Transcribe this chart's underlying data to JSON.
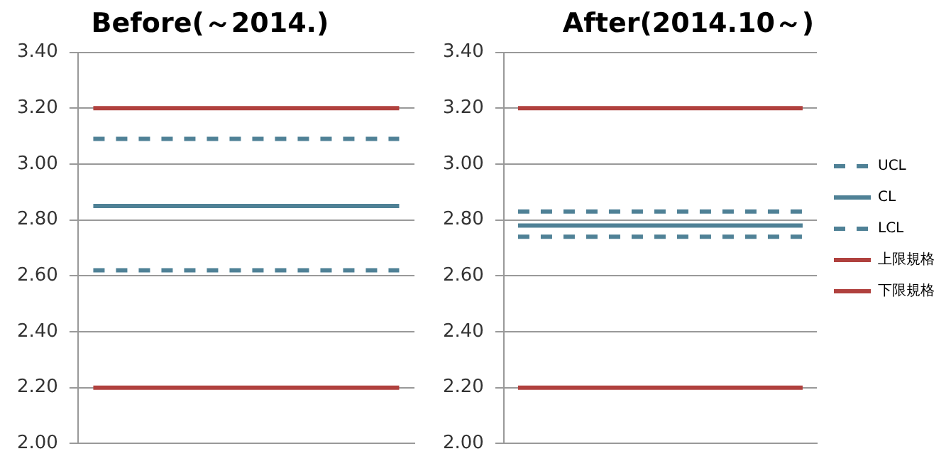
{
  "chart_data": [
    {
      "type": "line",
      "title": "Before(～2014.)",
      "categories": [
        null,
        null,
        null,
        null,
        null,
        null,
        null,
        null,
        null,
        null,
        null
      ],
      "series": [
        {
          "color": "#4f8196",
          "line_style": "dashed",
          "values": [
            3.09,
            3.09,
            3.09,
            3.09,
            3.09,
            3.09,
            3.09,
            3.09,
            3.09,
            3.09,
            3.09
          ]
        },
        {
          "color": "#4f8196",
          "line_style": "solid",
          "values": [
            2.85,
            2.85,
            2.85,
            2.85,
            2.85,
            2.85,
            2.85,
            2.85,
            2.85,
            2.85,
            2.85
          ]
        },
        {
          "color": "#4f8196",
          "line_style": "dashed",
          "values": [
            2.62,
            2.62,
            2.62,
            2.62,
            2.62,
            2.62,
            2.62,
            2.62,
            2.62,
            2.62,
            2.62
          ]
        },
        {
          "color": "#b0413e",
          "line_style": "solid",
          "values": [
            3.2,
            3.2,
            3.2,
            3.2,
            3.2,
            3.2,
            3.2,
            3.2,
            3.2,
            3.2,
            3.2
          ]
        },
        {
          "color": "#b0413e",
          "line_style": "solid",
          "values": [
            2.2,
            2.2,
            2.2,
            2.2,
            2.2,
            2.2,
            2.2,
            2.2,
            2.2,
            2.2,
            2.2
          ]
        }
      ],
      "ylim": [
        2.0,
        3.4
      ],
      "yticks": [
        {
          "value": 2.0,
          "label": "2.00"
        },
        {
          "value": 2.2,
          "label": "2.20"
        },
        {
          "value": 2.4,
          "label": "2.40"
        },
        {
          "value": 2.6,
          "label": "2.60"
        },
        {
          "value": 2.8,
          "label": "2.80"
        },
        {
          "value": 3.0,
          "label": "3.00"
        },
        {
          "value": 3.2,
          "label": "3.20"
        },
        {
          "value": 3.4,
          "label": "3.40"
        }
      ],
      "grid": "y",
      "legend": false,
      "marker": "none",
      "tick_labels": "y"
    },
    {
      "type": "line",
      "title": "After(2014.10～)",
      "categories": [
        null,
        null,
        null,
        null,
        null,
        null,
        null,
        null,
        null,
        null,
        null
      ],
      "series": [
        {
          "name": "UCL",
          "color": "#4f8196",
          "line_style": "dashed",
          "values": [
            2.83,
            2.83,
            2.83,
            2.83,
            2.83,
            2.83,
            2.83,
            2.83,
            2.83,
            2.83,
            2.83
          ]
        },
        {
          "name": "CL",
          "color": "#4f8196",
          "line_style": "solid",
          "values": [
            2.78,
            2.78,
            2.78,
            2.78,
            2.78,
            2.78,
            2.78,
            2.78,
            2.78,
            2.78,
            2.78
          ]
        },
        {
          "name": "LCL",
          "color": "#4f8196",
          "line_style": "dashed",
          "values": [
            2.74,
            2.74,
            2.74,
            2.74,
            2.74,
            2.74,
            2.74,
            2.74,
            2.74,
            2.74,
            2.74
          ]
        },
        {
          "name": "上限規格",
          "color": "#b0413e",
          "line_style": "solid",
          "values": [
            3.2,
            3.2,
            3.2,
            3.2,
            3.2,
            3.2,
            3.2,
            3.2,
            3.2,
            3.2,
            3.2
          ]
        },
        {
          "name": "下限規格",
          "color": "#b0413e",
          "line_style": "solid",
          "values": [
            2.2,
            2.2,
            2.2,
            2.2,
            2.2,
            2.2,
            2.2,
            2.2,
            2.2,
            2.2,
            2.2
          ]
        }
      ],
      "ylim": [
        2.0,
        3.4
      ],
      "yticks": [
        {
          "value": 2.0,
          "label": "2.00"
        },
        {
          "value": 2.2,
          "label": "2.20"
        },
        {
          "value": 2.4,
          "label": "2.40"
        },
        {
          "value": 2.6,
          "label": "2.60"
        },
        {
          "value": 2.8,
          "label": "2.80"
        },
        {
          "value": 3.0,
          "label": "3.00"
        },
        {
          "value": 3.2,
          "label": "3.20"
        },
        {
          "value": 3.4,
          "label": "3.40"
        }
      ],
      "grid": "y",
      "legend": "right",
      "marker": "none",
      "tick_labels": "y"
    }
  ]
}
